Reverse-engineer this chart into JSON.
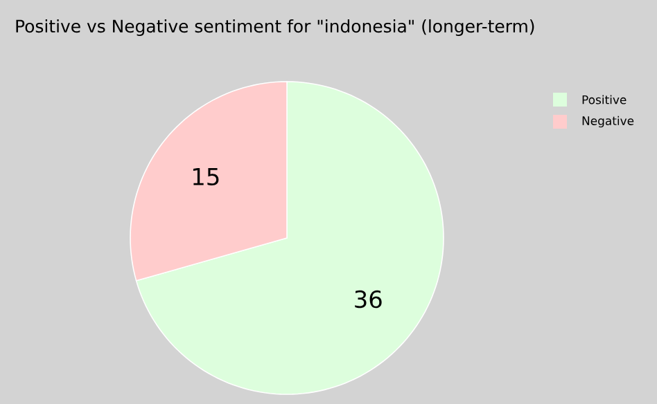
{
  "chart_data": {
    "type": "pie",
    "title": "Positive vs Negative sentiment for \"indonesia\" (longer-term)",
    "categories": [
      "Positive",
      "Negative"
    ],
    "values": [
      36,
      15
    ],
    "colors": [
      "#ddfedd",
      "#ffcccc"
    ],
    "data_labels": true,
    "legend": "top right"
  }
}
